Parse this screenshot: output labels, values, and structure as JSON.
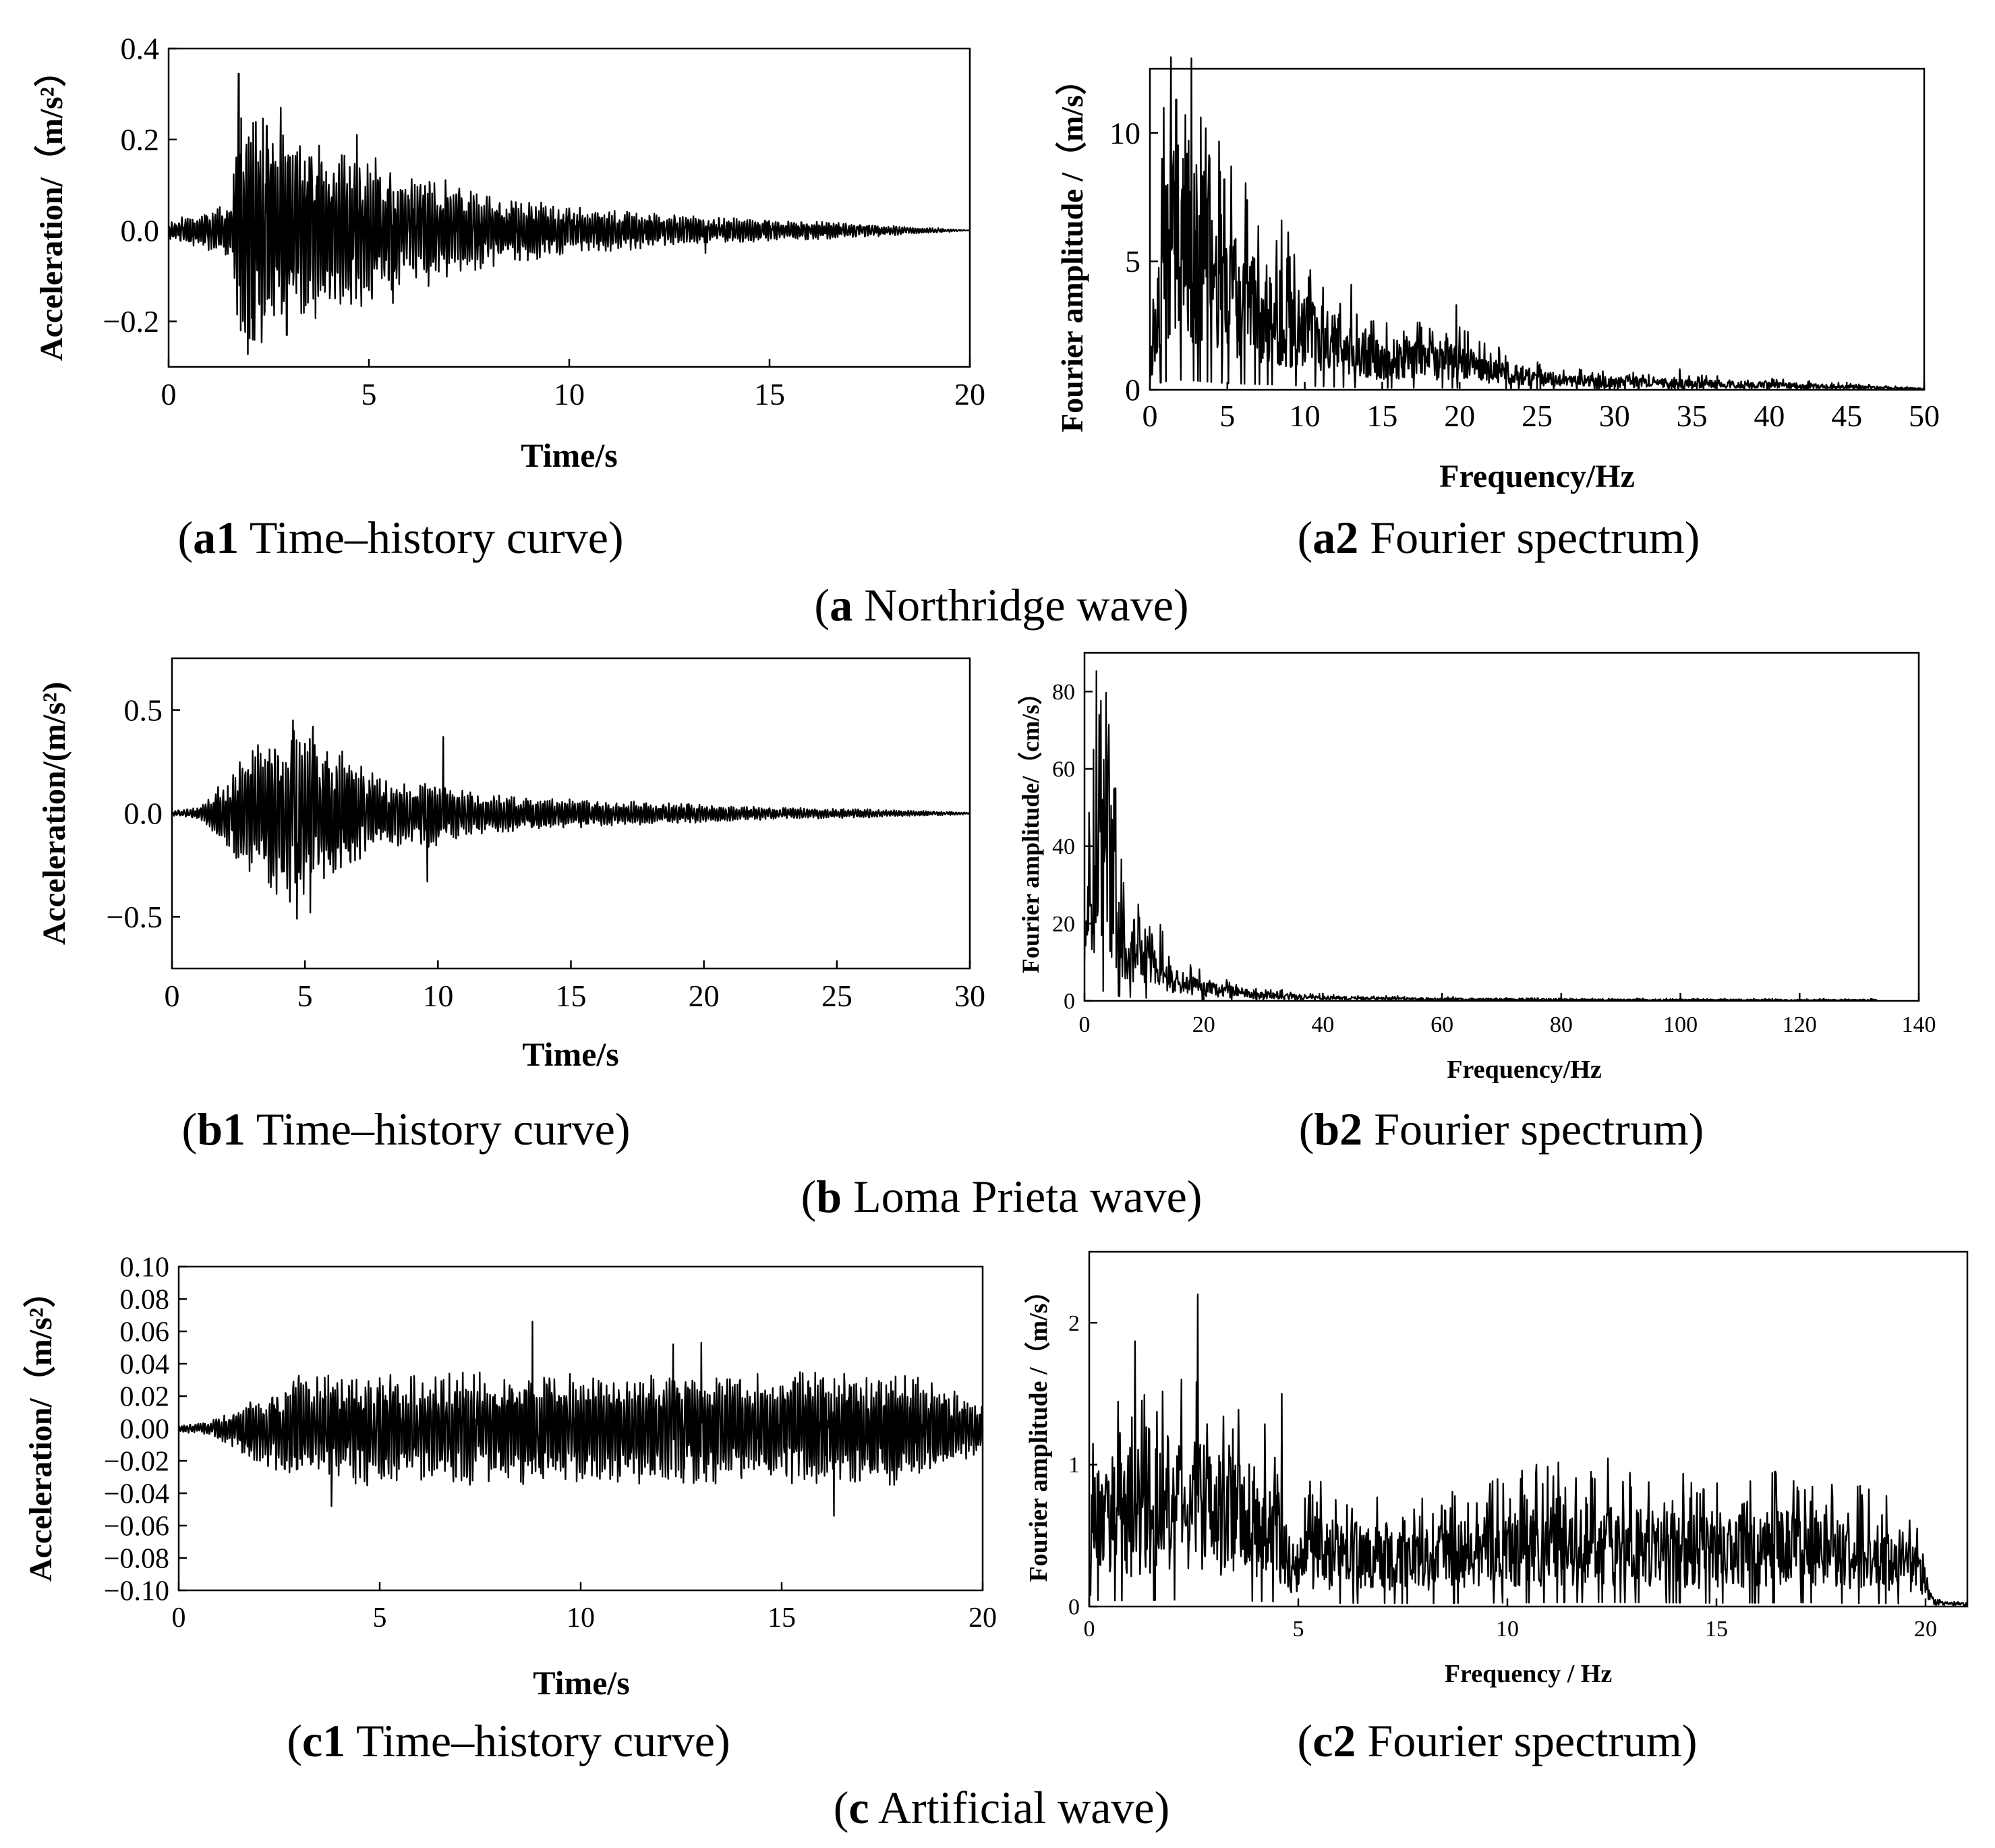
{
  "colors": {
    "line": "#000000",
    "background": "#ffffff"
  },
  "captions": {
    "a1_tag": "a1",
    "a1_text": " Time–history curve",
    "a2_tag": "a2",
    "a2_text": " Fourier spectrum",
    "a_tag": "a",
    "a_text": " Northridge wave",
    "b1_tag": "b1",
    "b1_text": " Time–history curve",
    "b2_tag": "b2",
    "b2_text": " Fourier spectrum",
    "b_tag": "b",
    "b_text": " Loma Prieta wave",
    "c1_tag": "c1",
    "c1_text": " Time–history curve",
    "c2_tag": "c2",
    "c2_text": " Fourier spectrum",
    "c_tag": "c",
    "c_text": " Artificial wave"
  },
  "chart_data": [
    {
      "id": "a1",
      "type": "line",
      "signal": "time-history",
      "title": "(a1) Time–history curve",
      "xlabel": "Time/s",
      "ylabel": "Acceleration/（m/s²）",
      "xlim": [
        0,
        20
      ],
      "ylim": [
        -0.3,
        0.4
      ],
      "xticks": [
        0,
        5,
        10,
        15,
        20
      ],
      "xtick_labels": [
        "0",
        "5",
        "10",
        "15",
        "20"
      ],
      "yticks": [
        -0.2,
        0.0,
        0.2,
        0.4
      ],
      "ytick_labels": [
        "−0.2",
        "0.0",
        "0.2",
        "0.4"
      ],
      "duration": 20,
      "seed": 11,
      "envelope": [
        [
          0,
          0.02
        ],
        [
          1,
          0.04
        ],
        [
          1.6,
          0.06
        ],
        [
          1.7,
          0.3
        ],
        [
          2.4,
          0.22
        ],
        [
          3,
          0.2
        ],
        [
          5,
          0.15
        ],
        [
          8,
          0.075
        ],
        [
          10,
          0.05
        ],
        [
          13,
          0.03
        ],
        [
          17,
          0.015
        ],
        [
          19,
          0.006
        ],
        [
          20,
          0
        ]
      ],
      "peaks": [
        [
          1.75,
          0.345
        ],
        [
          1.8,
          -0.22
        ],
        [
          2.1,
          -0.24
        ],
        [
          2.45,
          0.23
        ],
        [
          2.8,
          0.27
        ],
        [
          2.95,
          -0.23
        ],
        [
          4.7,
          0.21
        ],
        [
          5.6,
          -0.16
        ],
        [
          13.4,
          -0.05
        ]
      ],
      "grid": false
    },
    {
      "id": "a2",
      "type": "line",
      "signal": "spectrum",
      "title": "(a2) Fourier spectrum",
      "xlabel": "Frequency/Hz",
      "ylabel": "Fourier amplitude /（m/s）",
      "xlim": [
        0,
        50
      ],
      "ylim": [
        0,
        12.5
      ],
      "xticks": [
        0,
        5,
        10,
        15,
        20,
        25,
        30,
        35,
        40,
        45,
        50
      ],
      "xtick_labels": [
        "0",
        "5",
        "10",
        "15",
        "20",
        "25",
        "30",
        "35",
        "40",
        "45",
        "50"
      ],
      "yticks": [
        0,
        5,
        10
      ],
      "ytick_labels": [
        "0",
        "5",
        "10"
      ],
      "fmax": 50,
      "seed": 23,
      "envelope": [
        [
          0,
          0.5
        ],
        [
          0.5,
          5
        ],
        [
          1.5,
          8
        ],
        [
          3,
          7
        ],
        [
          5,
          5
        ],
        [
          8,
          4
        ],
        [
          10,
          3
        ],
        [
          13,
          2
        ],
        [
          15,
          1.6
        ],
        [
          20,
          1.5
        ],
        [
          22,
          1
        ],
        [
          25,
          0.6
        ],
        [
          30,
          0.4
        ],
        [
          40,
          0.25
        ],
        [
          50,
          0.05
        ]
      ],
      "peaks": [
        [
          1.7,
          11.3
        ],
        [
          2.3,
          10.7
        ],
        [
          3.5,
          8.5
        ],
        [
          4.8,
          8.2
        ],
        [
          8.5,
          6.6
        ],
        [
          13,
          4.1
        ],
        [
          19.8,
          3.3
        ],
        [
          34.2,
          0.8
        ]
      ],
      "grid": false
    },
    {
      "id": "b1",
      "type": "line",
      "signal": "time-history",
      "title": "(b1) Time–history curve",
      "xlabel": "Time/s",
      "ylabel": "Acceleration/(m/s²)",
      "xlim": [
        0,
        30
      ],
      "ylim": [
        -0.75,
        0.75
      ],
      "xticks": [
        0,
        5,
        10,
        15,
        20,
        25,
        30
      ],
      "xtick_labels": [
        "0",
        "5",
        "10",
        "15",
        "20",
        "25",
        "30"
      ],
      "yticks": [
        -0.5,
        0.0,
        0.5
      ],
      "ytick_labels": [
        "−0.5",
        "0.0",
        "0.5"
      ],
      "duration": 30,
      "seed": 37,
      "envelope": [
        [
          0,
          0.01
        ],
        [
          1,
          0.03
        ],
        [
          2,
          0.15
        ],
        [
          3,
          0.3
        ],
        [
          4.5,
          0.4
        ],
        [
          6,
          0.3
        ],
        [
          8,
          0.15
        ],
        [
          10,
          0.15
        ],
        [
          11,
          0.1
        ],
        [
          14,
          0.07
        ],
        [
          18,
          0.05
        ],
        [
          22,
          0.03
        ],
        [
          26,
          0.02
        ],
        [
          30,
          0.005
        ]
      ],
      "peaks": [
        [
          4.55,
          0.45
        ],
        [
          4.7,
          -0.51
        ],
        [
          5.3,
          0.42
        ],
        [
          5.2,
          -0.48
        ],
        [
          10.2,
          0.37
        ],
        [
          9.6,
          -0.33
        ],
        [
          6.4,
          0.3
        ]
      ],
      "grid": false
    },
    {
      "id": "b2",
      "type": "line",
      "signal": "spectrum",
      "title": "(b2) Fourier spectrum",
      "xlabel": "Frequency/Hz",
      "ylabel": "Fourier amplitude/（cm/s）",
      "xlim": [
        0,
        140
      ],
      "ylim": [
        0,
        90
      ],
      "xticks": [
        0,
        20,
        40,
        60,
        80,
        100,
        120,
        140
      ],
      "xtick_labels": [
        "0",
        "20",
        "40",
        "60",
        "80",
        "100",
        "120",
        "140"
      ],
      "yticks": [
        0,
        20,
        40,
        60,
        80
      ],
      "ytick_labels": [
        "0",
        "20",
        "40",
        "60",
        "80"
      ],
      "fmax": 133,
      "seed": 51,
      "envelope": [
        [
          0,
          20
        ],
        [
          1,
          45
        ],
        [
          2,
          50
        ],
        [
          4,
          50
        ],
        [
          5,
          35
        ],
        [
          6,
          22
        ],
        [
          10,
          15
        ],
        [
          15,
          8
        ],
        [
          20,
          4
        ],
        [
          30,
          2
        ],
        [
          40,
          1
        ],
        [
          60,
          0.6
        ],
        [
          80,
          0.4
        ],
        [
          133,
          0.3
        ]
      ],
      "peaks": [
        [
          2.5,
          74
        ],
        [
          1.5,
          65
        ],
        [
          4,
          65
        ],
        [
          5,
          55
        ],
        [
          9,
          25
        ]
      ],
      "grid": false
    },
    {
      "id": "c1",
      "type": "line",
      "signal": "time-history",
      "title": "(c1) Time–history curve",
      "xlabel": "Time/s",
      "ylabel": "Acceleration/（m/s²）",
      "xlim": [
        0,
        20
      ],
      "ylim": [
        -0.1,
        0.1
      ],
      "xticks": [
        0,
        5,
        10,
        15,
        20
      ],
      "xtick_labels": [
        "0",
        "5",
        "10",
        "15",
        "20"
      ],
      "yticks": [
        -0.1,
        -0.08,
        -0.06,
        -0.04,
        -0.02,
        0.0,
        0.02,
        0.04,
        0.06,
        0.08,
        0.1
      ],
      "ytick_labels": [
        "−0.10",
        "−0.08",
        "−0.06",
        "−0.04",
        "−0.02",
        "0.00",
        "0.02",
        "0.04",
        "0.06",
        "0.08",
        "0.10"
      ],
      "duration": 20,
      "seed": 67,
      "envelope": [
        [
          0,
          0.002
        ],
        [
          0.8,
          0.004
        ],
        [
          1.2,
          0.01
        ],
        [
          2,
          0.02
        ],
        [
          3,
          0.032
        ],
        [
          18,
          0.032
        ],
        [
          19,
          0.025
        ],
        [
          20,
          0.015
        ]
      ],
      "peaks": [
        [
          8.8,
          0.066
        ],
        [
          16.3,
          -0.054
        ],
        [
          13,
          0.053
        ],
        [
          3.8,
          -0.048
        ],
        [
          12.3,
          0.052
        ]
      ],
      "grid": false
    },
    {
      "id": "c2",
      "type": "line",
      "signal": "spectrum",
      "title": "(c2) Fourier spectrum",
      "xlabel": "Frequency / Hz",
      "ylabel": "Fourier amplitude /（m/s）",
      "xlim": [
        0,
        21
      ],
      "ylim": [
        0,
        2.5
      ],
      "xticks": [
        0,
        5,
        10,
        15,
        20
      ],
      "xtick_labels": [
        "0",
        "5",
        "10",
        "15",
        "20"
      ],
      "yticks": [
        0,
        1,
        2
      ],
      "ytick_labels": [
        "0",
        "1",
        "2"
      ],
      "fmax": 21,
      "seed": 79,
      "envelope": [
        [
          0,
          0.05
        ],
        [
          0.1,
          0.9
        ],
        [
          1,
          0.8
        ],
        [
          2,
          0.95
        ],
        [
          3,
          0.9
        ],
        [
          4.5,
          0.7
        ],
        [
          4.9,
          0.3
        ],
        [
          5.2,
          0.5
        ],
        [
          8,
          0.45
        ],
        [
          12,
          0.6
        ],
        [
          15,
          0.5
        ],
        [
          17,
          0.55
        ],
        [
          19.8,
          0.4
        ],
        [
          20.2,
          0.03
        ],
        [
          21,
          0.02
        ]
      ],
      "peaks": [
        [
          2.6,
          2.2
        ],
        [
          1.1,
          1.87
        ],
        [
          2.2,
          1.6
        ],
        [
          4.6,
          1.5
        ],
        [
          10.7,
          1.0
        ],
        [
          12,
          0.95
        ],
        [
          19.8,
          0.55
        ]
      ],
      "grid": false
    }
  ]
}
